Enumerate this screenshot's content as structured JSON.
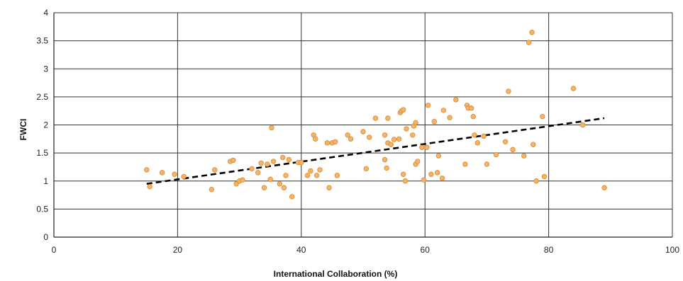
{
  "chart_data": {
    "type": "scatter",
    "title": "",
    "xlabel": "International Collaboration (%)",
    "ylabel": "FWCI",
    "xlim": [
      0,
      100
    ],
    "ylim": [
      0,
      4
    ],
    "x_ticks": [
      0,
      20,
      40,
      60,
      80,
      100
    ],
    "y_ticks": [
      0,
      0.5,
      1,
      1.5,
      2,
      2.5,
      3,
      3.5,
      4
    ],
    "grid": true,
    "legend": "none",
    "point_color": "#F6B26B",
    "point_edge_color": "#D98C2B",
    "trendline": {
      "style": "dashed",
      "color": "#000000",
      "x": [
        15,
        89
      ],
      "y": [
        0.95,
        2.12
      ]
    },
    "points": [
      {
        "x": 15,
        "y": 1.2
      },
      {
        "x": 15.5,
        "y": 0.9
      },
      {
        "x": 17.5,
        "y": 1.15
      },
      {
        "x": 19.5,
        "y": 1.12
      },
      {
        "x": 21,
        "y": 1.08
      },
      {
        "x": 25.5,
        "y": 0.85
      },
      {
        "x": 26,
        "y": 1.2
      },
      {
        "x": 28.5,
        "y": 1.35
      },
      {
        "x": 29,
        "y": 1.37
      },
      {
        "x": 29.5,
        "y": 0.95
      },
      {
        "x": 30,
        "y": 1.0
      },
      {
        "x": 30.5,
        "y": 1.02
      },
      {
        "x": 32,
        "y": 1.22
      },
      {
        "x": 33,
        "y": 1.15
      },
      {
        "x": 33.5,
        "y": 1.32
      },
      {
        "x": 34,
        "y": 0.88
      },
      {
        "x": 34.5,
        "y": 1.3
      },
      {
        "x": 35,
        "y": 1.03
      },
      {
        "x": 35.2,
        "y": 1.95
      },
      {
        "x": 35.5,
        "y": 1.35
      },
      {
        "x": 36.5,
        "y": 0.95
      },
      {
        "x": 37,
        "y": 1.42
      },
      {
        "x": 37.2,
        "y": 0.88
      },
      {
        "x": 37.5,
        "y": 1.1
      },
      {
        "x": 38,
        "y": 1.38
      },
      {
        "x": 38.5,
        "y": 0.72
      },
      {
        "x": 39.5,
        "y": 1.33
      },
      {
        "x": 40,
        "y": 1.33
      },
      {
        "x": 41,
        "y": 1.1
      },
      {
        "x": 41.5,
        "y": 1.18
      },
      {
        "x": 42,
        "y": 1.82
      },
      {
        "x": 42.3,
        "y": 1.75
      },
      {
        "x": 42.5,
        "y": 1.1
      },
      {
        "x": 43,
        "y": 1.2
      },
      {
        "x": 44.5,
        "y": 0.88
      },
      {
        "x": 44.2,
        "y": 1.68
      },
      {
        "x": 45,
        "y": 1.68
      },
      {
        "x": 45.5,
        "y": 1.7
      },
      {
        "x": 45.8,
        "y": 1.1
      },
      {
        "x": 47.5,
        "y": 1.82
      },
      {
        "x": 48,
        "y": 1.75
      },
      {
        "x": 50,
        "y": 1.88
      },
      {
        "x": 50.5,
        "y": 1.22
      },
      {
        "x": 51,
        "y": 1.78
      },
      {
        "x": 52,
        "y": 2.12
      },
      {
        "x": 53.5,
        "y": 1.38
      },
      {
        "x": 53.5,
        "y": 1.82
      },
      {
        "x": 53.8,
        "y": 1.23
      },
      {
        "x": 54,
        "y": 2.12
      },
      {
        "x": 54,
        "y": 1.68
      },
      {
        "x": 54.5,
        "y": 1.65
      },
      {
        "x": 55,
        "y": 1.74
      },
      {
        "x": 55.8,
        "y": 1.75
      },
      {
        "x": 56,
        "y": 2.22
      },
      {
        "x": 56.2,
        "y": 2.25
      },
      {
        "x": 56.5,
        "y": 2.27
      },
      {
        "x": 56.5,
        "y": 1.12
      },
      {
        "x": 56.8,
        "y": 1.0
      },
      {
        "x": 57,
        "y": 1.93
      },
      {
        "x": 58,
        "y": 1.82
      },
      {
        "x": 58.2,
        "y": 1.98
      },
      {
        "x": 58.5,
        "y": 2.04
      },
      {
        "x": 58.5,
        "y": 1.3
      },
      {
        "x": 58.8,
        "y": 1.35
      },
      {
        "x": 59.5,
        "y": 1.6
      },
      {
        "x": 59.8,
        "y": 1.02
      },
      {
        "x": 60.3,
        "y": 1.6
      },
      {
        "x": 60.5,
        "y": 2.35
      },
      {
        "x": 61,
        "y": 1.12
      },
      {
        "x": 61.5,
        "y": 2.06
      },
      {
        "x": 62,
        "y": 1.15
      },
      {
        "x": 62.2,
        "y": 1.45
      },
      {
        "x": 62.8,
        "y": 1.05
      },
      {
        "x": 63,
        "y": 2.26
      },
      {
        "x": 64,
        "y": 2.13
      },
      {
        "x": 65,
        "y": 2.45
      },
      {
        "x": 66.5,
        "y": 1.3
      },
      {
        "x": 66.8,
        "y": 2.35
      },
      {
        "x": 67,
        "y": 2.3
      },
      {
        "x": 67.5,
        "y": 2.3
      },
      {
        "x": 67.8,
        "y": 2.15
      },
      {
        "x": 68,
        "y": 1.82
      },
      {
        "x": 68.5,
        "y": 1.68
      },
      {
        "x": 69.5,
        "y": 1.8
      },
      {
        "x": 70,
        "y": 1.3
      },
      {
        "x": 71.5,
        "y": 1.47
      },
      {
        "x": 73,
        "y": 1.7
      },
      {
        "x": 73.5,
        "y": 2.6
      },
      {
        "x": 74.2,
        "y": 1.56
      },
      {
        "x": 76,
        "y": 1.45
      },
      {
        "x": 76.8,
        "y": 3.47
      },
      {
        "x": 77.3,
        "y": 3.65
      },
      {
        "x": 77.5,
        "y": 1.65
      },
      {
        "x": 78,
        "y": 1.0
      },
      {
        "x": 79,
        "y": 2.15
      },
      {
        "x": 79.3,
        "y": 1.08
      },
      {
        "x": 84,
        "y": 2.65
      },
      {
        "x": 85.5,
        "y": 2.0
      },
      {
        "x": 89,
        "y": 0.88
      }
    ]
  }
}
